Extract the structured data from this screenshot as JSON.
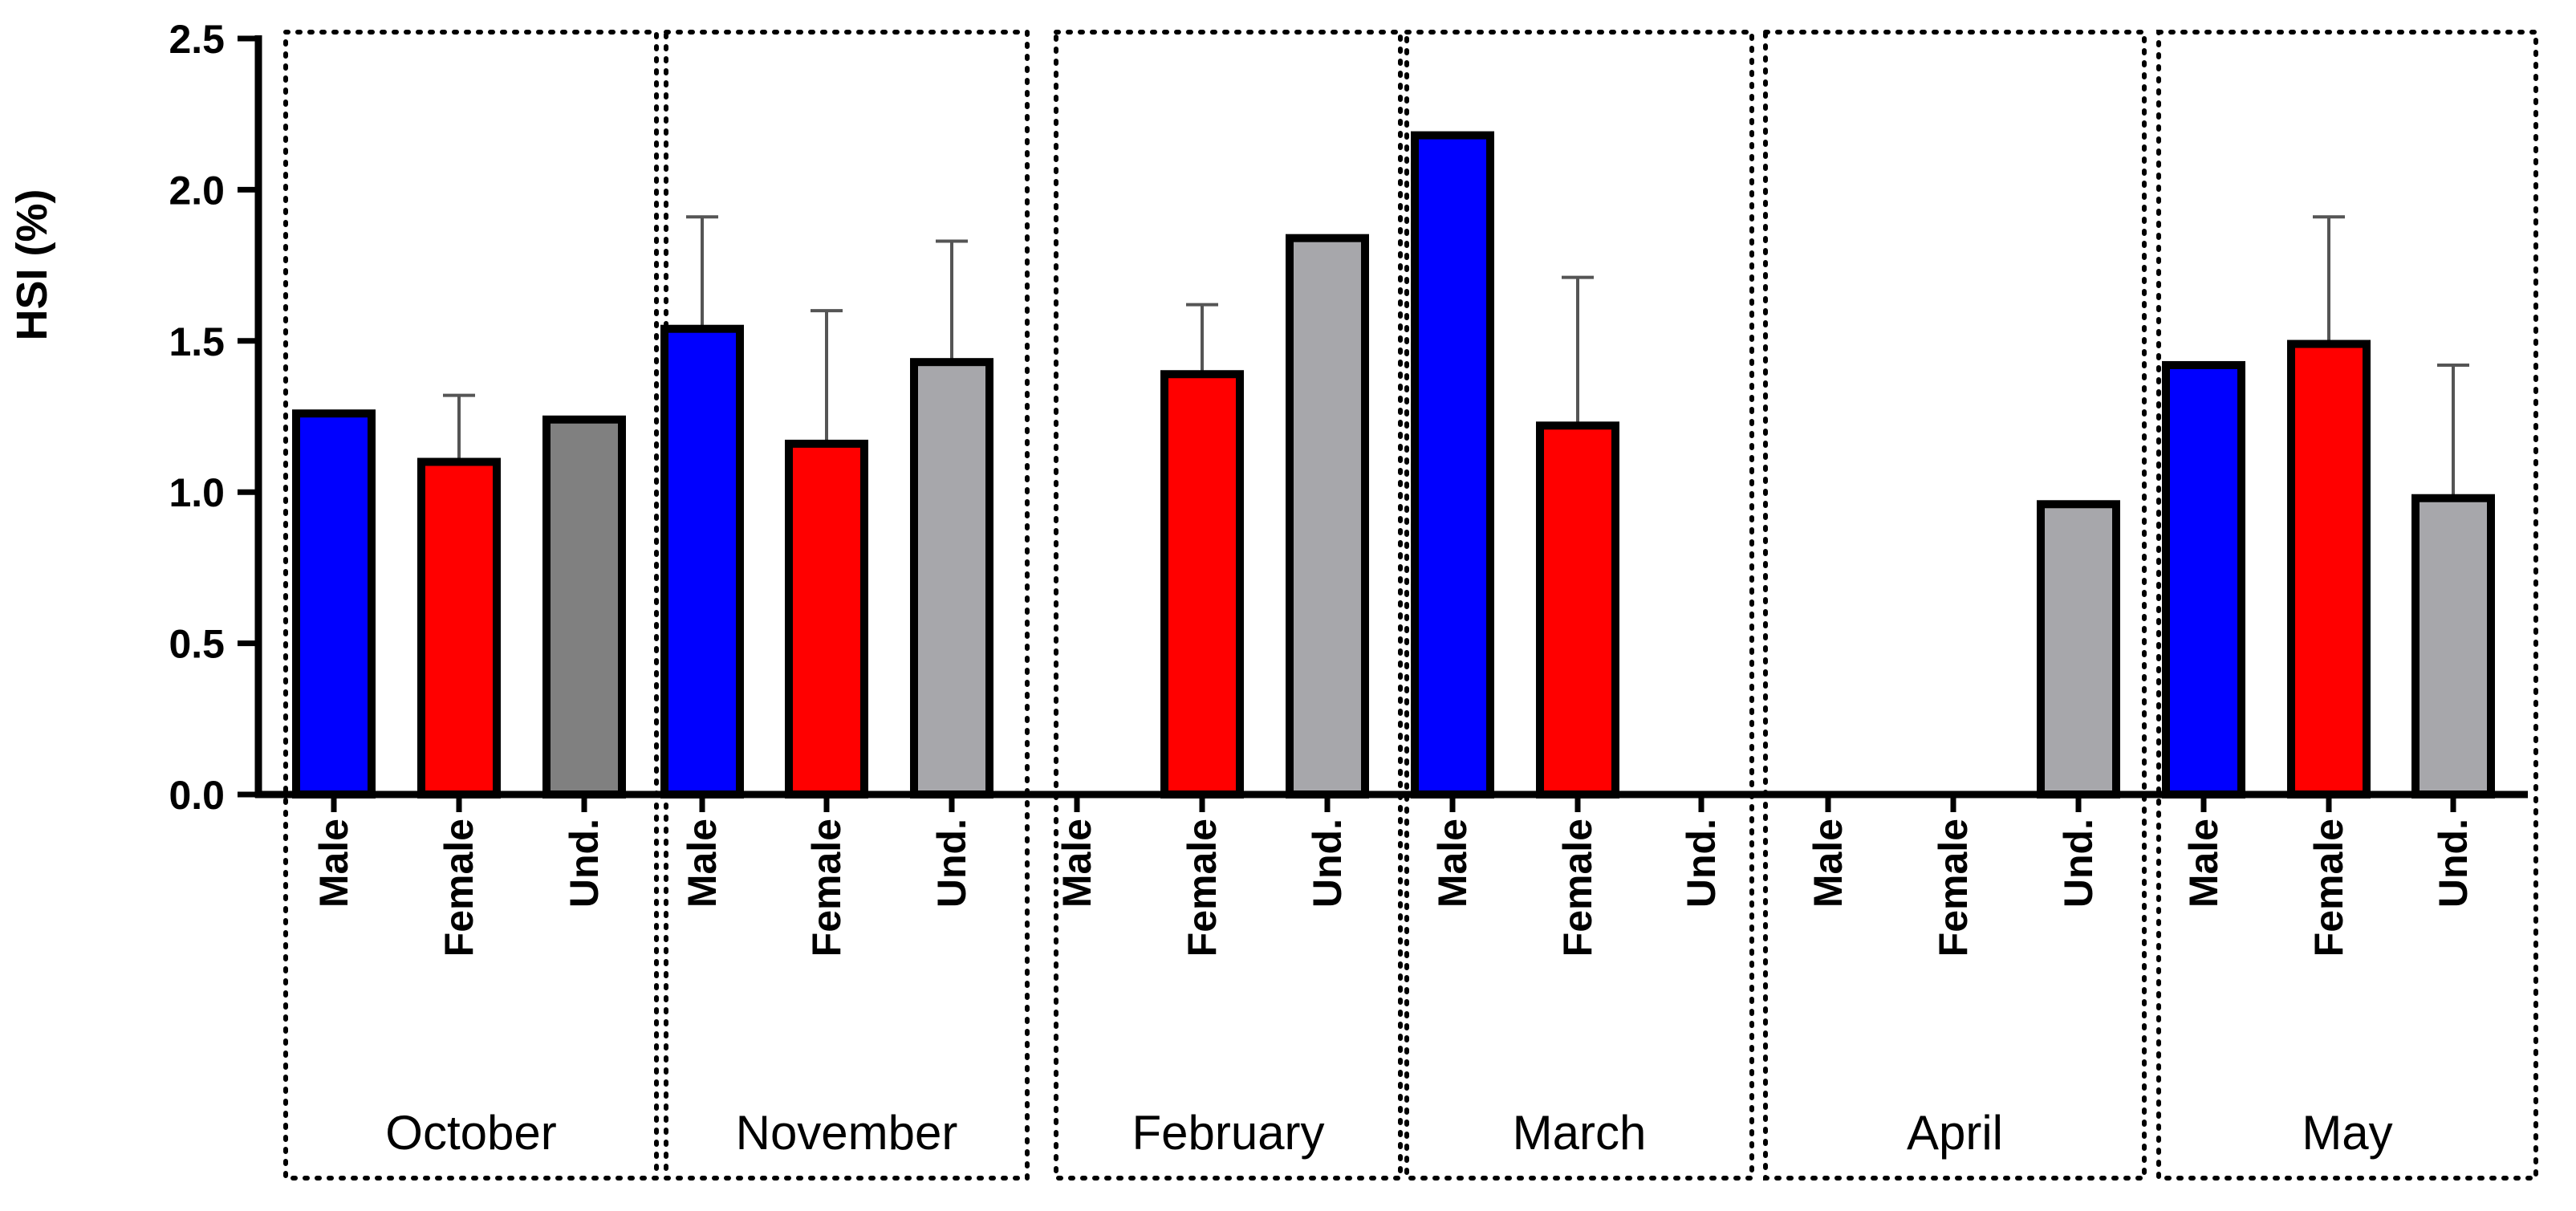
{
  "chart_data": {
    "type": "bar",
    "ylabel": "HSI (%)",
    "ylim": [
      0,
      2.5
    ],
    "yticks": [
      "0.0",
      "0.5",
      "1.0",
      "1.5",
      "2.0",
      "2.5"
    ],
    "grid": false,
    "legend": "none",
    "colors": {
      "Male": "#0000ff",
      "Female": "#ff0000",
      "Und.": "#a7a7ab",
      "Und. (October)": "#808080"
    },
    "groups": [
      {
        "label": "October",
        "bars": [
          {
            "category": "Male",
            "value": 1.26,
            "error": null
          },
          {
            "category": "Female",
            "value": 1.1,
            "error": 0.22
          },
          {
            "category": "Und.",
            "value": 1.24,
            "error": null
          }
        ]
      },
      {
        "label": "November",
        "bars": [
          {
            "category": "Male",
            "value": 1.54,
            "error": 0.37
          },
          {
            "category": "Female",
            "value": 1.16,
            "error": 0.44
          },
          {
            "category": "Und.",
            "value": 1.43,
            "error": 0.4
          }
        ]
      },
      {
        "label": "February",
        "bars": [
          {
            "category": "Male",
            "value": null,
            "error": null
          },
          {
            "category": "Female",
            "value": 1.39,
            "error": 0.23
          },
          {
            "category": "Und.",
            "value": 1.84,
            "error": null
          }
        ]
      },
      {
        "label": "March",
        "bars": [
          {
            "category": "Male",
            "value": 2.18,
            "error": null
          },
          {
            "category": "Female",
            "value": 1.22,
            "error": 0.49
          },
          {
            "category": "Und.",
            "value": null,
            "error": null
          }
        ]
      },
      {
        "label": "April",
        "bars": [
          {
            "category": "Male",
            "value": null,
            "error": null
          },
          {
            "category": "Female",
            "value": null,
            "error": null
          },
          {
            "category": "Und.",
            "value": 0.96,
            "error": null
          }
        ]
      },
      {
        "label": "May",
        "bars": [
          {
            "category": "Male",
            "value": 1.42,
            "error": null
          },
          {
            "category": "Female",
            "value": 1.49,
            "error": 0.42
          },
          {
            "category": "Und.",
            "value": 0.98,
            "error": 0.44
          }
        ]
      }
    ]
  }
}
